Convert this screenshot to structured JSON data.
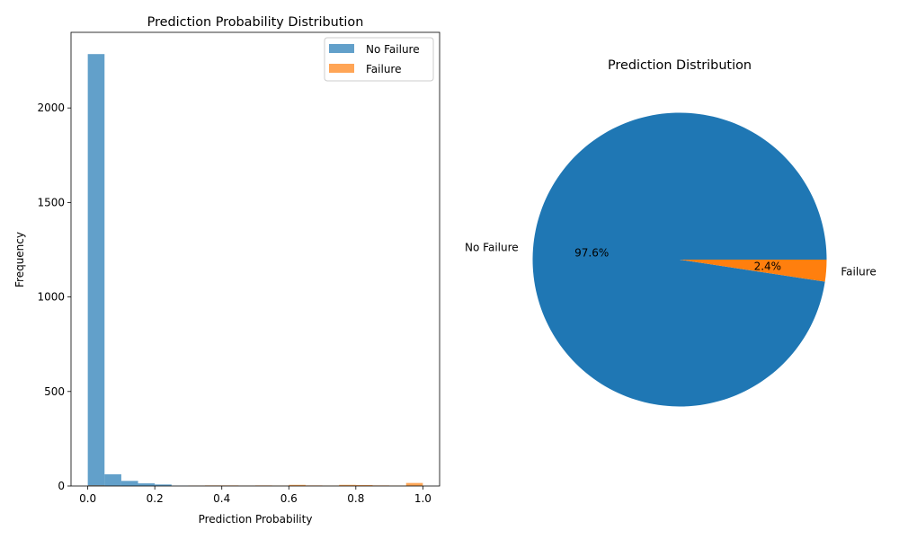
{
  "chart_data": [
    {
      "type": "bar",
      "subtype": "histogram",
      "title": "Prediction Probability Distribution",
      "xlabel": "Prediction Probability",
      "ylabel": "Frequency",
      "xlim": [
        -0.05,
        1.05
      ],
      "ylim": [
        0,
        2400
      ],
      "xticks": [
        "0.0",
        "0.2",
        "0.4",
        "0.6",
        "0.8",
        "1.0"
      ],
      "yticks": [
        "0",
        "500",
        "1000",
        "1500",
        "2000"
      ],
      "legend_position": "top-right",
      "series": [
        {
          "name": "No Failure",
          "color": "#1f77b4",
          "alpha": 0.7,
          "bins": [
            {
              "x0": 0.0,
              "x1": 0.05,
              "value": 2285
            },
            {
              "x0": 0.05,
              "x1": 0.1,
              "value": 62
            },
            {
              "x0": 0.1,
              "x1": 0.15,
              "value": 27
            },
            {
              "x0": 0.15,
              "x1": 0.2,
              "value": 14
            },
            {
              "x0": 0.2,
              "x1": 0.25,
              "value": 8
            },
            {
              "x0": 0.25,
              "x1": 0.3,
              "value": 1
            },
            {
              "x0": 0.3,
              "x1": 0.35,
              "value": 1
            },
            {
              "x0": 0.35,
              "x1": 0.4,
              "value": 2
            },
            {
              "x0": 0.4,
              "x1": 0.45,
              "value": 1
            },
            {
              "x0": 0.45,
              "x1": 0.5,
              "value": 1
            }
          ]
        },
        {
          "name": "Failure",
          "color": "#ff7f0e",
          "alpha": 0.7,
          "bins": [
            {
              "x0": 0.0,
              "x1": 0.05,
              "value": 3
            },
            {
              "x0": 0.05,
              "x1": 0.1,
              "value": 1
            },
            {
              "x0": 0.3,
              "x1": 0.35,
              "value": 2
            },
            {
              "x0": 0.35,
              "x1": 0.4,
              "value": 3
            },
            {
              "x0": 0.4,
              "x1": 0.45,
              "value": 3
            },
            {
              "x0": 0.45,
              "x1": 0.5,
              "value": 2
            },
            {
              "x0": 0.5,
              "x1": 0.55,
              "value": 3
            },
            {
              "x0": 0.55,
              "x1": 0.6,
              "value": 2
            },
            {
              "x0": 0.6,
              "x1": 0.65,
              "value": 6
            },
            {
              "x0": 0.65,
              "x1": 0.7,
              "value": 3
            },
            {
              "x0": 0.7,
              "x1": 0.75,
              "value": 2
            },
            {
              "x0": 0.75,
              "x1": 0.8,
              "value": 6
            },
            {
              "x0": 0.8,
              "x1": 0.85,
              "value": 5
            },
            {
              "x0": 0.85,
              "x1": 0.9,
              "value": 3
            },
            {
              "x0": 0.9,
              "x1": 0.95,
              "value": 2
            },
            {
              "x0": 0.95,
              "x1": 1.0,
              "value": 16
            }
          ]
        }
      ]
    },
    {
      "type": "pie",
      "title": "Prediction Distribution",
      "slices": [
        {
          "label": "No Failure",
          "value": 97.6,
          "pct_label": "97.6%",
          "color": "#1f77b4"
        },
        {
          "label": "Failure",
          "value": 2.4,
          "pct_label": "2.4%",
          "color": "#ff7f0e"
        }
      ]
    }
  ]
}
